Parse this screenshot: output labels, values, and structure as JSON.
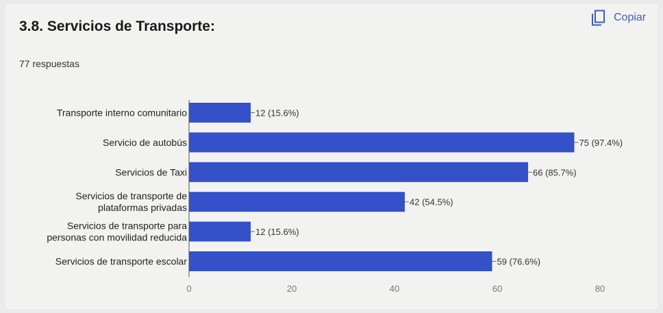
{
  "title": "3.8. Servicios de Transporte:",
  "copy_label": "Copiar",
  "copy_icon": "copy-icon",
  "responses": "77 respuestas",
  "accent_color": "#3f5fb0",
  "chart_data": {
    "type": "bar",
    "orientation": "horizontal",
    "categories": [
      "Transporte interno comunitario",
      "Servicio de autobús",
      "Servicios de Taxi",
      "Servicios de transporte de plataformas privadas",
      "Servicios de transporte para personas con movilidad reducida",
      "Servicios de transporte escolar"
    ],
    "category_lines": [
      [
        "Transporte interno comunitario"
      ],
      [
        "Servicio de autobús"
      ],
      [
        "Servicios de Taxi"
      ],
      [
        "Servicios de transporte de",
        "plataformas privadas"
      ],
      [
        "Servicios de transporte para",
        "personas con movilidad reducida"
      ],
      [
        "Servicios de transporte escolar"
      ]
    ],
    "values": [
      12,
      75,
      66,
      42,
      12,
      59
    ],
    "data_labels": [
      "12 (15.6%)",
      "75 (97.4%)",
      "66 (85.7%)",
      "42 (54.5%)",
      "12 (15.6%)",
      "59 (76.6%)"
    ],
    "x_ticks": [
      0,
      20,
      40,
      60,
      80
    ],
    "xlim": [
      0,
      80
    ],
    "bar_color": "#3451c9",
    "grid": false
  }
}
